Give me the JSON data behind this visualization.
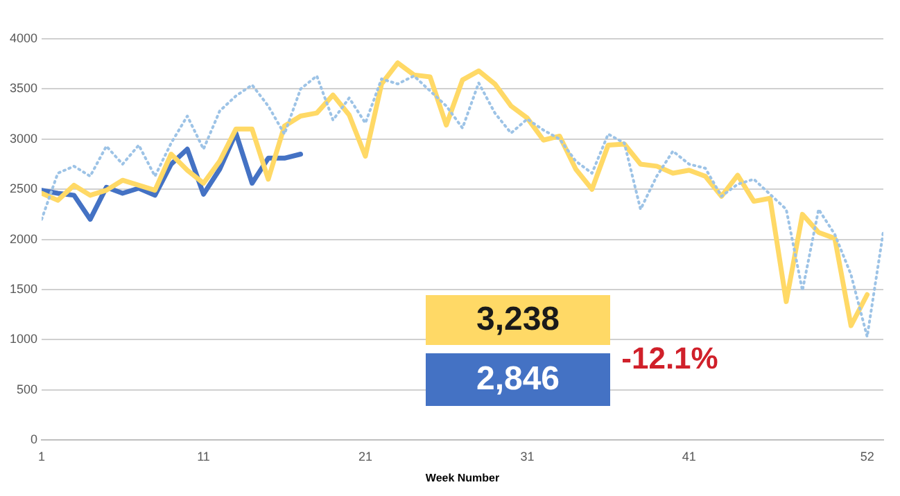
{
  "chart_data": {
    "type": "line",
    "xlabel": "Week Number",
    "xlim": [
      1,
      53
    ],
    "xticks": [
      1,
      11,
      21,
      31,
      41,
      52
    ],
    "ylim": [
      0,
      4000
    ],
    "yticks": [
      0,
      500,
      1000,
      1500,
      2000,
      2500,
      3000,
      3500,
      4000
    ],
    "grid": "y",
    "legend": false,
    "marker": "none",
    "series": [
      {
        "color": "#9dc3e6",
        "line_style": "dotted",
        "x": [
          1,
          2,
          3,
          4,
          5,
          6,
          7,
          8,
          9,
          10,
          11,
          12,
          13,
          14,
          15,
          16,
          17,
          18,
          19,
          20,
          21,
          22,
          23,
          24,
          25,
          26,
          27,
          28,
          29,
          30,
          31,
          32,
          33,
          34,
          35,
          36,
          37,
          38,
          39,
          40,
          41,
          42,
          43,
          44,
          45,
          46,
          47,
          48,
          49,
          50,
          51,
          52,
          53
        ],
        "values": [
          2200,
          2660,
          2730,
          2630,
          2930,
          2750,
          2940,
          2630,
          2960,
          3230,
          2900,
          3280,
          3430,
          3540,
          3330,
          3050,
          3500,
          3630,
          3190,
          3410,
          3160,
          3600,
          3550,
          3630,
          3480,
          3330,
          3110,
          3560,
          3260,
          3060,
          3200,
          3090,
          3000,
          2780,
          2660,
          3050,
          2960,
          2300,
          2630,
          2880,
          2750,
          2710,
          2430,
          2550,
          2600,
          2450,
          2300,
          1490,
          2300,
          2050,
          1650,
          1030,
          2080
        ]
      },
      {
        "color": "#ffd966",
        "line_style": "solid",
        "x": [
          1,
          2,
          3,
          4,
          5,
          6,
          7,
          8,
          9,
          10,
          11,
          12,
          13,
          14,
          15,
          16,
          17,
          18,
          19,
          20,
          21,
          22,
          23,
          24,
          25,
          26,
          27,
          28,
          29,
          30,
          31,
          32,
          33,
          34,
          35,
          36,
          37,
          38,
          39,
          40,
          41,
          42,
          43,
          44,
          45,
          46,
          47,
          48,
          49,
          50,
          51,
          52
        ],
        "values": [
          2460,
          2390,
          2540,
          2440,
          2490,
          2590,
          2540,
          2490,
          2850,
          2690,
          2560,
          2780,
          3100,
          3100,
          2600,
          3130,
          3230,
          3260,
          3440,
          3240,
          2830,
          3550,
          3760,
          3640,
          3620,
          3140,
          3590,
          3680,
          3550,
          3330,
          3210,
          2990,
          3030,
          2700,
          2500,
          2940,
          2950,
          2750,
          2730,
          2660,
          2690,
          2630,
          2430,
          2640,
          2380,
          2410,
          1380,
          2250,
          2070,
          2010,
          1140,
          1450
        ]
      },
      {
        "color": "#4472c4",
        "line_style": "solid",
        "x": [
          1,
          2,
          3,
          4,
          5,
          6,
          7,
          8,
          9,
          10,
          11,
          12,
          13,
          14,
          15,
          16,
          17
        ],
        "values": [
          2490,
          2460,
          2440,
          2200,
          2520,
          2460,
          2510,
          2440,
          2750,
          2900,
          2450,
          2700,
          3060,
          2560,
          2810,
          2810,
          2850
        ]
      }
    ],
    "annotations": [
      "3,238",
      "2,846",
      "-12.1%"
    ]
  }
}
